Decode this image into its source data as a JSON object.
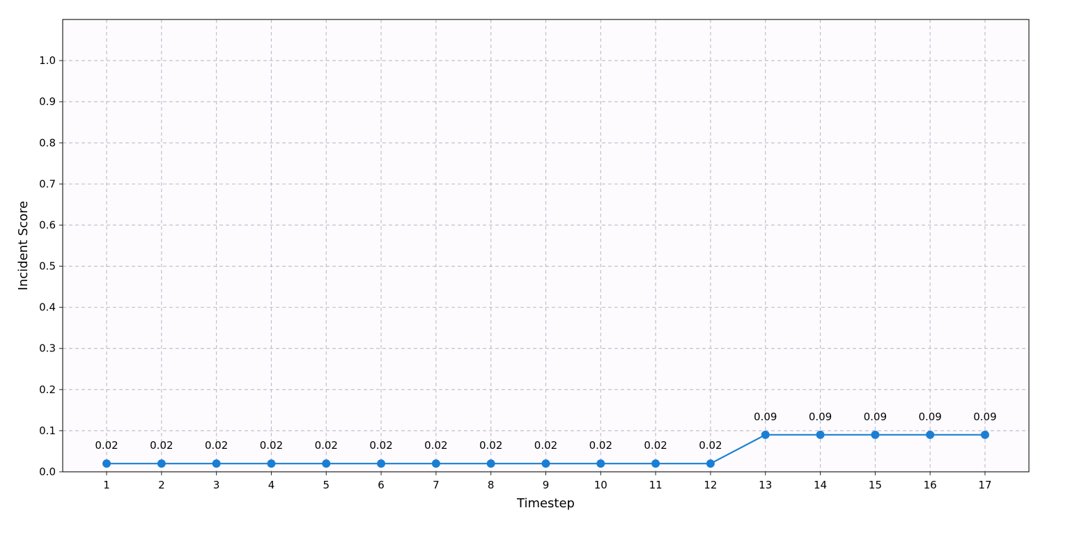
{
  "chart_data": {
    "type": "line",
    "xlabel": "Timestep",
    "ylabel": "Incident Score",
    "x": [
      1,
      2,
      3,
      4,
      5,
      6,
      7,
      8,
      9,
      10,
      11,
      12,
      13,
      14,
      15,
      16,
      17
    ],
    "values": [
      0.02,
      0.02,
      0.02,
      0.02,
      0.02,
      0.02,
      0.02,
      0.02,
      0.02,
      0.02,
      0.02,
      0.02,
      0.09,
      0.09,
      0.09,
      0.09,
      0.09
    ],
    "data_labels": [
      "0.02",
      "0.02",
      "0.02",
      "0.02",
      "0.02",
      "0.02",
      "0.02",
      "0.02",
      "0.02",
      "0.02",
      "0.02",
      "0.02",
      "0.09",
      "0.09",
      "0.09",
      "0.09",
      "0.09"
    ],
    "x_ticks": [
      "1",
      "2",
      "3",
      "4",
      "5",
      "6",
      "7",
      "8",
      "9",
      "10",
      "11",
      "12",
      "13",
      "14",
      "15",
      "16",
      "17"
    ],
    "y_ticks": [
      "0.0",
      "0.1",
      "0.2",
      "0.3",
      "0.4",
      "0.5",
      "0.6",
      "0.7",
      "0.8",
      "0.9",
      "1.0"
    ],
    "y_tick_values": [
      0,
      0.1,
      0.2,
      0.3,
      0.4,
      0.5,
      0.6,
      0.7,
      0.8,
      0.9,
      1.0
    ],
    "xlim": [
      0.2,
      17.8
    ],
    "ylim": [
      0,
      1.1
    ],
    "grid": true,
    "grid_style": "dashed",
    "colors": {
      "line": "#1a7fd4",
      "marker": "#1a7fd4",
      "grid": "#c4b6cc",
      "plot_background": "#fdfbfe",
      "axes": "#222222"
    }
  }
}
